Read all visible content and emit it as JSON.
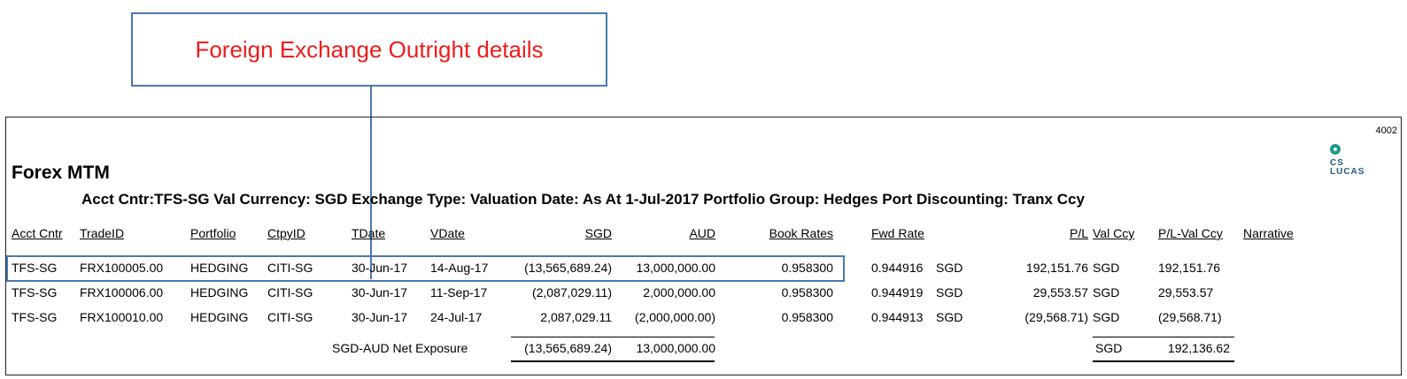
{
  "callout": {
    "text": "Foreign Exchange Outright details"
  },
  "report": {
    "page_number": "4002",
    "logo_text": "CS\nLUCAS",
    "title": "Forex MTM",
    "subtitle": "Acct Cntr:TFS-SG Val Currency: SGD Exchange Type: Valuation Date: As At  1-Jul-2017 Portfolio Group: Hedges Port  Discounting: Tranx Ccy",
    "headers": {
      "acct": "Acct Cntr",
      "trade": "TradeID",
      "portfolio": "Portfolio",
      "ctpy": "CtpyID",
      "tdate": "TDate",
      "vdate": "VDate",
      "sgd": "SGD",
      "aud": "AUD",
      "book": "Book Rates",
      "fwd": "Fwd Rate",
      "pl": "P/L",
      "valccy": "Val Ccy",
      "plval": "P/L-Val Ccy",
      "narrative": "Narrative"
    },
    "rows": [
      {
        "acct": "TFS-SG",
        "trade": "FRX100005.00",
        "portfolio": "HEDGING",
        "ctpy": "CITI-SG",
        "tdate": "30-Jun-17",
        "vdate": "14-Aug-17",
        "sgd": "(13,565,689.24)",
        "aud": "13,000,000.00",
        "book": "0.958300",
        "fwd": "0.944916",
        "fwdccy": "SGD",
        "pl": "192,151.76",
        "valccy": "SGD",
        "plval": "192,151.76"
      },
      {
        "acct": "TFS-SG",
        "trade": "FRX100006.00",
        "portfolio": "HEDGING",
        "ctpy": "CITI-SG",
        "tdate": "30-Jun-17",
        "vdate": "11-Sep-17",
        "sgd": "(2,087,029.11)",
        "aud": "2,000,000.00",
        "book": "0.958300",
        "fwd": "0.944919",
        "fwdccy": "SGD",
        "pl": "29,553.57",
        "valccy": "SGD",
        "plval": "29,553.57"
      },
      {
        "acct": "TFS-SG",
        "trade": "FRX100010.00",
        "portfolio": "HEDGING",
        "ctpy": "CITI-SG",
        "tdate": "30-Jun-17",
        "vdate": "24-Jul-17",
        "sgd": "2,087,029.11",
        "aud": "(2,000,000.00)",
        "book": "0.958300",
        "fwd": "0.944913",
        "fwdccy": "SGD",
        "pl": "(29,568.71)",
        "valccy": "SGD",
        "plval": "(29,568.71)"
      }
    ],
    "totals": {
      "label": "SGD-AUD Net Exposure",
      "sgd": "(13,565,689.24)",
      "aud": "13,000,000.00",
      "valccy": "SGD",
      "plval": "192,136.62"
    }
  }
}
